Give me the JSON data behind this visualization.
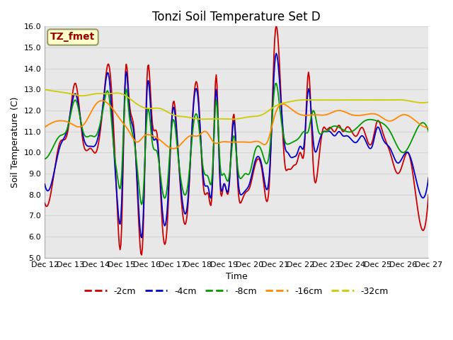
{
  "title": "Tonzi Soil Temperature Set D",
  "xlabel": "Time",
  "ylabel": "Soil Temperature (C)",
  "ylim": [
    5.0,
    16.0
  ],
  "yticks": [
    5.0,
    6.0,
    7.0,
    8.0,
    9.0,
    10.0,
    11.0,
    12.0,
    13.0,
    14.0,
    15.0,
    16.0
  ],
  "xtick_labels": [
    "Dec 12",
    "Dec 13",
    "Dec 14",
    "Dec 15",
    "Dec 16",
    "Dec 17",
    "Dec 18",
    "Dec 19",
    "Dec 20",
    "Dec 21",
    "Dec 22",
    "Dec 23",
    "Dec 24",
    "Dec 25",
    "Dec 26",
    "Dec 27"
  ],
  "legend_labels": [
    "-2cm",
    "-4cm",
    "-8cm",
    "-16cm",
    "-32cm"
  ],
  "line_colors": [
    "#cc0000",
    "#0000cc",
    "#009900",
    "#ff8800",
    "#cccc00"
  ],
  "annotation_text": "TZ_fmet",
  "annotation_color": "#990000",
  "annotation_bg": "#ffffcc",
  "title_fontsize": 12,
  "axis_fontsize": 9,
  "tick_fontsize": 8,
  "red_x": [
    0,
    0.3,
    0.6,
    0.9,
    1.2,
    1.5,
    1.8,
    2.0,
    2.3,
    2.5,
    2.7,
    2.85,
    3.0,
    3.15,
    3.3,
    3.5,
    3.7,
    3.85,
    4.0,
    4.2,
    4.4,
    4.6,
    4.8,
    5.0,
    5.2,
    5.4,
    5.6,
    5.8,
    6.0,
    6.2,
    6.4,
    6.55,
    6.7,
    6.85,
    7.0,
    7.2,
    7.4,
    7.55,
    7.7,
    7.85,
    8.0,
    8.2,
    8.5,
    8.8,
    9.0,
    9.2,
    9.4,
    9.5,
    9.6,
    9.75,
    9.85,
    10.0,
    10.15,
    10.3,
    10.5,
    10.7,
    10.9,
    11.0,
    11.15,
    11.35,
    11.5,
    11.65,
    11.8,
    12.0,
    12.2,
    12.4,
    12.6,
    12.8,
    13.0,
    13.2,
    13.5,
    13.8,
    14.0,
    14.2,
    14.5,
    15.0
  ],
  "red_y": [
    7.6,
    8.5,
    10.5,
    11.0,
    13.3,
    10.5,
    10.2,
    10.0,
    12.5,
    14.2,
    11.0,
    7.0,
    6.2,
    13.7,
    12.5,
    11.0,
    6.1,
    6.3,
    13.6,
    11.5,
    10.8,
    6.5,
    6.8,
    12.2,
    10.3,
    7.0,
    7.5,
    12.1,
    12.8,
    8.4,
    8.0,
    8.3,
    13.7,
    8.6,
    8.5,
    8.3,
    11.8,
    8.4,
    7.7,
    8.1,
    8.3,
    9.3,
    9.1,
    9.0,
    15.6,
    13.6,
    9.3,
    9.2,
    9.2,
    9.4,
    9.5,
    10.0,
    10.2,
    13.8,
    9.3,
    9.5,
    11.2,
    11.1,
    11.2,
    11.0,
    11.3,
    11.0,
    11.2,
    11.0,
    10.8,
    11.2,
    10.6,
    10.5,
    11.5,
    11.0,
    10.0,
    9.0,
    9.5,
    10.0,
    8.0,
    8.0
  ],
  "blue_x": [
    0,
    0.3,
    0.6,
    0.9,
    1.2,
    1.5,
    1.8,
    2.0,
    2.3,
    2.5,
    2.7,
    2.85,
    3.0,
    3.15,
    3.3,
    3.5,
    3.7,
    3.85,
    4.0,
    4.2,
    4.4,
    4.6,
    4.8,
    5.0,
    5.2,
    5.4,
    5.6,
    5.8,
    6.0,
    6.2,
    6.4,
    6.55,
    6.7,
    6.85,
    7.0,
    7.2,
    7.4,
    7.55,
    7.7,
    7.85,
    8.0,
    8.2,
    8.5,
    8.8,
    9.0,
    9.2,
    9.4,
    9.5,
    9.6,
    9.75,
    9.85,
    10.0,
    10.15,
    10.3,
    10.5,
    10.7,
    10.9,
    11.0,
    11.15,
    11.35,
    11.5,
    11.65,
    11.8,
    12.0,
    12.2,
    12.4,
    12.6,
    12.8,
    13.0,
    13.2,
    13.5,
    13.8,
    14.0,
    14.2,
    14.5,
    15.0
  ],
  "blue_y": [
    8.5,
    8.7,
    10.3,
    11.2,
    12.8,
    10.8,
    10.3,
    10.4,
    12.5,
    13.7,
    10.2,
    7.5,
    7.4,
    13.5,
    12.2,
    10.8,
    6.8,
    6.9,
    13.0,
    11.0,
    10.5,
    7.2,
    7.5,
    12.0,
    10.2,
    7.5,
    7.8,
    12.0,
    12.5,
    8.8,
    8.3,
    8.5,
    13.0,
    8.8,
    8.5,
    8.4,
    11.5,
    8.8,
    8.0,
    8.2,
    8.5,
    9.5,
    9.3,
    9.3,
    14.4,
    13.0,
    10.2,
    10.0,
    9.8,
    9.8,
    9.9,
    10.3,
    10.5,
    13.0,
    10.5,
    10.4,
    11.0,
    11.0,
    11.0,
    10.8,
    11.0,
    10.8,
    10.8,
    10.6,
    10.5,
    10.8,
    10.4,
    10.3,
    11.2,
    10.7,
    10.2,
    9.5,
    9.8,
    10.0,
    8.8,
    8.8
  ],
  "green_x": [
    0,
    0.3,
    0.6,
    0.9,
    1.2,
    1.5,
    1.8,
    2.0,
    2.3,
    2.5,
    2.7,
    2.85,
    3.0,
    3.15,
    3.3,
    3.5,
    3.7,
    3.85,
    4.0,
    4.2,
    4.4,
    4.6,
    4.8,
    5.0,
    5.2,
    5.4,
    5.6,
    5.8,
    6.0,
    6.2,
    6.4,
    6.55,
    6.7,
    6.85,
    7.0,
    7.2,
    7.4,
    7.55,
    7.7,
    7.85,
    8.0,
    8.2,
    8.5,
    8.8,
    9.0,
    9.2,
    9.4,
    9.5,
    9.7,
    9.85,
    10.0,
    10.15,
    10.3,
    10.5,
    10.7,
    10.9,
    11.0,
    11.2,
    11.5,
    11.8,
    12.0,
    12.5,
    13.0,
    13.5,
    14.0,
    14.5,
    15.0
  ],
  "green_y": [
    9.7,
    10.2,
    10.8,
    11.2,
    12.5,
    11.0,
    10.8,
    10.8,
    12.2,
    12.8,
    10.2,
    8.8,
    8.8,
    12.8,
    11.8,
    10.5,
    8.2,
    8.0,
    11.8,
    10.5,
    10.0,
    8.2,
    8.5,
    11.5,
    10.0,
    8.2,
    8.5,
    11.2,
    11.5,
    9.2,
    8.8,
    9.0,
    12.5,
    9.5,
    9.0,
    8.8,
    10.8,
    9.2,
    8.8,
    9.0,
    9.0,
    10.0,
    10.0,
    10.2,
    13.2,
    12.0,
    10.5,
    10.4,
    10.5,
    10.6,
    10.8,
    11.0,
    11.0,
    12.0,
    11.0,
    11.0,
    11.0,
    11.2,
    11.2,
    11.0,
    11.0,
    11.5,
    11.5,
    11.0,
    10.0,
    11.0,
    11.0
  ],
  "orange_x": [
    0,
    0.5,
    1.0,
    1.5,
    2.0,
    2.5,
    3.0,
    3.3,
    3.6,
    3.9,
    4.2,
    4.5,
    4.8,
    5.1,
    5.4,
    5.7,
    6.0,
    6.3,
    6.6,
    6.9,
    7.2,
    7.5,
    7.8,
    8.1,
    8.4,
    8.7,
    9.0,
    9.5,
    10.0,
    10.5,
    11.0,
    11.5,
    12.0,
    12.5,
    13.0,
    13.5,
    14.0,
    14.5,
    15.0
  ],
  "orange_y": [
    11.2,
    11.5,
    11.4,
    11.3,
    12.3,
    12.3,
    11.5,
    11.0,
    10.5,
    10.8,
    10.8,
    10.6,
    10.3,
    10.2,
    10.5,
    10.8,
    10.8,
    11.0,
    10.5,
    10.5,
    10.5,
    10.5,
    10.5,
    10.5,
    10.5,
    10.5,
    11.8,
    12.2,
    11.8,
    11.8,
    11.8,
    12.0,
    11.8,
    11.8,
    11.8,
    11.5,
    11.8,
    11.5,
    11.2
  ],
  "yellow_x": [
    0,
    0.5,
    1.0,
    1.5,
    2.0,
    2.5,
    3.0,
    3.5,
    4.0,
    4.5,
    5.0,
    5.5,
    6.0,
    6.5,
    7.0,
    7.5,
    8.0,
    8.5,
    9.0,
    9.5,
    10.0,
    10.5,
    11.0,
    11.5,
    12.0,
    12.5,
    13.0,
    13.5,
    14.0,
    14.5,
    15.0
  ],
  "yellow_y": [
    13.0,
    12.9,
    12.8,
    12.7,
    12.8,
    12.8,
    12.8,
    12.4,
    12.1,
    12.1,
    11.8,
    11.7,
    11.6,
    11.6,
    11.6,
    11.6,
    11.7,
    11.8,
    12.2,
    12.4,
    12.5,
    12.5,
    12.5,
    12.5,
    12.5,
    12.5,
    12.5,
    12.5,
    12.5,
    12.4,
    12.4
  ]
}
